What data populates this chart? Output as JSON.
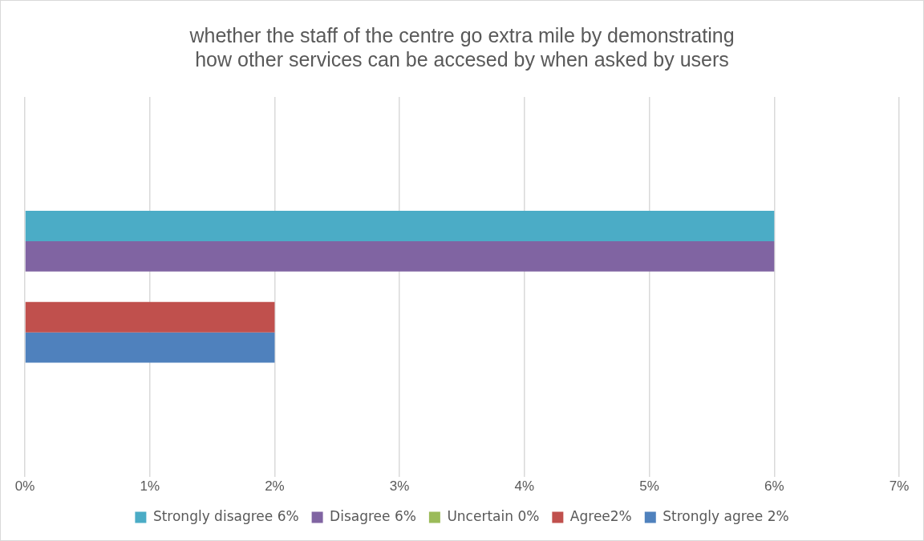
{
  "chart_data": {
    "type": "bar",
    "orientation": "horizontal",
    "title": "whether the staff of the centre go extra mile by demonstrating how other services can be accesed by when asked by users",
    "categories": [
      null
    ],
    "series": [
      {
        "name": "Strongly disagree 6%",
        "color": "#4bacc6",
        "values": [
          6
        ]
      },
      {
        "name": "Disagree 6%",
        "color": "#8064a2",
        "values": [
          6
        ]
      },
      {
        "name": "Uncertain 0%",
        "color": "#9bbb59",
        "values": [
          0
        ]
      },
      {
        "name": "Agree2%",
        "color": "#c0504d",
        "values": [
          2
        ]
      },
      {
        "name": "Strongly agree 2%",
        "color": "#4f81bd",
        "values": [
          2
        ]
      }
    ],
    "xlim": [
      0,
      7
    ],
    "xticks": [
      {
        "value": 0,
        "label": "0%"
      },
      {
        "value": 1,
        "label": "1%"
      },
      {
        "value": 2,
        "label": "2%"
      },
      {
        "value": 3,
        "label": "3%"
      },
      {
        "value": 4,
        "label": "4%"
      },
      {
        "value": 5,
        "label": "5%"
      },
      {
        "value": 6,
        "label": "6%"
      },
      {
        "value": 7,
        "label": "7%"
      }
    ],
    "grid": "x",
    "legend": "bottom",
    "tick_labels": "x"
  }
}
